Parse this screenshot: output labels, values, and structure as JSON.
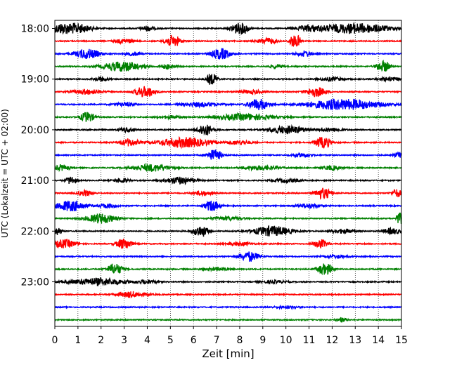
{
  "chart_data": {
    "type": "line",
    "title": "",
    "xlabel": "Zeit  [min]",
    "ylabel": "UTC (Lokalzeit = UTC + 02:00)",
    "xlim": [
      0,
      15
    ],
    "x_ticks": [
      "0",
      "1",
      "2",
      "3",
      "4",
      "5",
      "6",
      "7",
      "8",
      "9",
      "10",
      "11",
      "12",
      "13",
      "14",
      "15"
    ],
    "y_ticks": [
      "18:00",
      "19:00",
      "20:00",
      "21:00",
      "22:00",
      "23:00"
    ],
    "grid": "vertical dotted",
    "trace_interval_minutes": 15,
    "colors_cycle": [
      "#000000",
      "#ff0000",
      "#0000ff",
      "#008000"
    ],
    "series": [
      {
        "start": "18:00",
        "events": [
          [
            1,
            0.6,
            12,
            0.4
          ],
          [
            8,
            0.3,
            30,
            0.5
          ],
          [
            13,
            1.5,
            14,
            0.6
          ],
          [
            0.3,
            0.5,
            12,
            0.2
          ],
          [
            4,
            0.3,
            7,
            0.2
          ],
          [
            11,
            0.5,
            7,
            0.2
          ]
        ]
      },
      {
        "start": "18:15",
        "events": [
          [
            5.1,
            0.3,
            20,
            0.3
          ],
          [
            10.4,
            0.2,
            28,
            0.3
          ],
          [
            9.2,
            0.4,
            8,
            0.3
          ],
          [
            3,
            0.4,
            6,
            0.2
          ]
        ]
      },
      {
        "start": "18:30",
        "events": [
          [
            1.4,
            0.5,
            14,
            0.5
          ],
          [
            7.2,
            0.4,
            16,
            0.4
          ],
          [
            10.8,
            0.3,
            8,
            0.2
          ],
          [
            3.4,
            0.3,
            5,
            0.2
          ]
        ]
      },
      {
        "start": "18:45",
        "events": [
          [
            2.9,
            0.8,
            14,
            0.5
          ],
          [
            4.9,
            0.3,
            7,
            0.2
          ],
          [
            14.2,
            0.25,
            22,
            0.3
          ],
          [
            9.6,
            0.3,
            5,
            0.2
          ]
        ]
      },
      {
        "start": "19:00",
        "events": [
          [
            6.8,
            0.2,
            20,
            0.3
          ],
          [
            2,
            0.3,
            6,
            0.2
          ],
          [
            12,
            0.5,
            5,
            0.3
          ],
          [
            14.5,
            0.5,
            5,
            0.3
          ]
        ]
      },
      {
        "start": "19:15",
        "events": [
          [
            3.9,
            0.4,
            18,
            0.4
          ],
          [
            11.3,
            0.4,
            14,
            0.3
          ],
          [
            1.4,
            0.6,
            7,
            0.4
          ],
          [
            8.5,
            0.5,
            5,
            0.3
          ]
        ]
      },
      {
        "start": "19:30",
        "events": [
          [
            8.8,
            0.4,
            18,
            0.4
          ],
          [
            12.5,
            1.5,
            16,
            0.7
          ],
          [
            6.3,
            0.8,
            6,
            0.5
          ],
          [
            3,
            0.5,
            5,
            0.3
          ]
        ]
      },
      {
        "start": "19:45",
        "events": [
          [
            1.4,
            0.3,
            14,
            0.3
          ],
          [
            8.2,
            1.2,
            9,
            0.6
          ],
          [
            5,
            0.5,
            4,
            0.3
          ]
        ]
      },
      {
        "start": "20:00",
        "events": [
          [
            6.5,
            0.3,
            20,
            0.4
          ],
          [
            10.1,
            0.8,
            11,
            0.5
          ],
          [
            3.1,
            0.3,
            6,
            0.2
          ],
          [
            12,
            0.5,
            5,
            0.3
          ]
        ]
      },
      {
        "start": "20:15",
        "events": [
          [
            5.6,
            1.1,
            14,
            0.6
          ],
          [
            11.6,
            0.3,
            20,
            0.3
          ],
          [
            3.2,
            0.4,
            10,
            0.3
          ],
          [
            8,
            0.5,
            6,
            0.3
          ]
        ]
      },
      {
        "start": "20:30",
        "events": [
          [
            6.9,
            0.3,
            18,
            0.3
          ],
          [
            14.9,
            0.2,
            8,
            0.2
          ],
          [
            10.7,
            0.4,
            5,
            0.3
          ]
        ]
      },
      {
        "start": "20:45",
        "events": [
          [
            0.3,
            0.3,
            8,
            0.3
          ],
          [
            4.2,
            0.8,
            10,
            0.5
          ],
          [
            8.9,
            0.8,
            6,
            0.4
          ],
          [
            12,
            0.4,
            6,
            0.3
          ]
        ]
      },
      {
        "start": "21:00",
        "events": [
          [
            0.7,
            0.2,
            12,
            0.3
          ],
          [
            5.4,
            0.6,
            10,
            0.4
          ],
          [
            2.9,
            0.3,
            6,
            0.2
          ],
          [
            10,
            0.5,
            5,
            0.3
          ]
        ]
      },
      {
        "start": "21:15",
        "events": [
          [
            11.6,
            0.3,
            18,
            0.3
          ],
          [
            14.8,
            0.2,
            12,
            0.2
          ],
          [
            1.3,
            0.3,
            8,
            0.2
          ],
          [
            6.4,
            0.4,
            6,
            0.3
          ]
        ]
      },
      {
        "start": "21:30",
        "events": [
          [
            0.7,
            0.6,
            16,
            0.5
          ],
          [
            6.8,
            0.3,
            16,
            0.3
          ],
          [
            2.3,
            0.4,
            6,
            0.2
          ],
          [
            11,
            0.5,
            6,
            0.3
          ]
        ]
      },
      {
        "start": "21:45",
        "events": [
          [
            2,
            0.6,
            14,
            0.5
          ],
          [
            14.9,
            0.1,
            30,
            0.2
          ],
          [
            7.5,
            0.6,
            5,
            0.4
          ]
        ]
      },
      {
        "start": "22:00",
        "events": [
          [
            9.4,
            0.8,
            14,
            0.6
          ],
          [
            6.3,
            0.3,
            18,
            0.3
          ],
          [
            0.1,
            0.2,
            10,
            0.2
          ],
          [
            14.6,
            0.4,
            8,
            0.3
          ],
          [
            12.5,
            0.5,
            6,
            0.3
          ]
        ]
      },
      {
        "start": "22:15",
        "events": [
          [
            0.4,
            0.5,
            12,
            0.4
          ],
          [
            3,
            0.3,
            18,
            0.4
          ],
          [
            11.5,
            0.3,
            12,
            0.3
          ],
          [
            8,
            0.5,
            5,
            0.3
          ]
        ]
      },
      {
        "start": "22:30",
        "events": [
          [
            8.4,
            0.4,
            14,
            0.3
          ],
          [
            12.2,
            0.5,
            4,
            0.3
          ]
        ]
      },
      {
        "start": "22:45",
        "events": [
          [
            2.6,
            0.3,
            18,
            0.3
          ],
          [
            11.7,
            0.3,
            18,
            0.4
          ],
          [
            7,
            0.5,
            4,
            0.3
          ]
        ]
      },
      {
        "start": "23:00",
        "events": [
          [
            1.9,
            1.2,
            10,
            0.6
          ],
          [
            4,
            0.4,
            5,
            0.3
          ],
          [
            9.5,
            0.5,
            4,
            0.3
          ]
        ]
      },
      {
        "start": "23:15",
        "events": [
          [
            3.3,
            0.6,
            8,
            0.4
          ]
        ]
      },
      {
        "start": "23:30",
        "events": [
          [
            10,
            0.5,
            3,
            0.3
          ]
        ]
      },
      {
        "start": "23:45",
        "events": [
          [
            12.4,
            0.2,
            6,
            0.2
          ]
        ]
      }
    ]
  }
}
